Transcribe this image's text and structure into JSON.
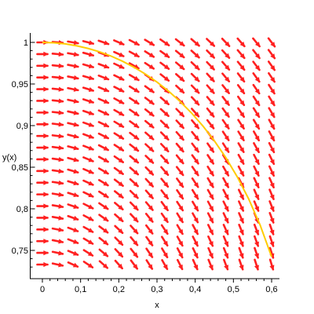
{
  "chart_data": {
    "type": "line",
    "subtype": "direction-field",
    "xlabel": "x",
    "ylabel": "y(x)",
    "xlim": [
      0,
      0.62
    ],
    "ylim": [
      0.725,
      1.01
    ],
    "x_ticks": [
      {
        "value": 0,
        "label": "0"
      },
      {
        "value": 0.1,
        "label": "0,1"
      },
      {
        "value": 0.2,
        "label": "0,2"
      },
      {
        "value": 0.3,
        "label": "0,3"
      },
      {
        "value": 0.4,
        "label": "0,4"
      },
      {
        "value": 0.5,
        "label": "0,5"
      },
      {
        "value": 0.6,
        "label": "0,6"
      }
    ],
    "y_ticks": [
      {
        "value": 0.75,
        "label": "0,75"
      },
      {
        "value": 0.8,
        "label": "0,8"
      },
      {
        "value": 0.85,
        "label": "0,85"
      },
      {
        "value": 0.9,
        "label": "0,9"
      },
      {
        "value": 0.95,
        "label": "0,95"
      },
      {
        "value": 1.0,
        "label": "1"
      }
    ],
    "field": {
      "x_start": 0,
      "x_end": 0.6,
      "x_count": 16,
      "y_start": 0.733,
      "y_end": 1.0,
      "y_count": 20,
      "slope_law": "dy/dx = -x / y^3",
      "color": "#ff2020"
    },
    "series": [
      {
        "color": "#ffcc00",
        "x": [
          0,
          0.03,
          0.06,
          0.09,
          0.12,
          0.15,
          0.18,
          0.21,
          0.24,
          0.27,
          0.3,
          0.33,
          0.36,
          0.39,
          0.42,
          0.45,
          0.48,
          0.51,
          0.54,
          0.57,
          0.6
        ],
        "y": [
          1.0,
          0.9995,
          0.9982,
          0.9959,
          0.9927,
          0.9886,
          0.9835,
          0.9773,
          0.9701,
          0.9618,
          0.9523,
          0.9415,
          0.9292,
          0.9153,
          0.8996,
          0.8818,
          0.8616,
          0.8385,
          0.8118,
          0.7804,
          0.7424
        ]
      }
    ],
    "grid": false,
    "legend": "none"
  },
  "colors": {
    "axis": "#000000"
  }
}
